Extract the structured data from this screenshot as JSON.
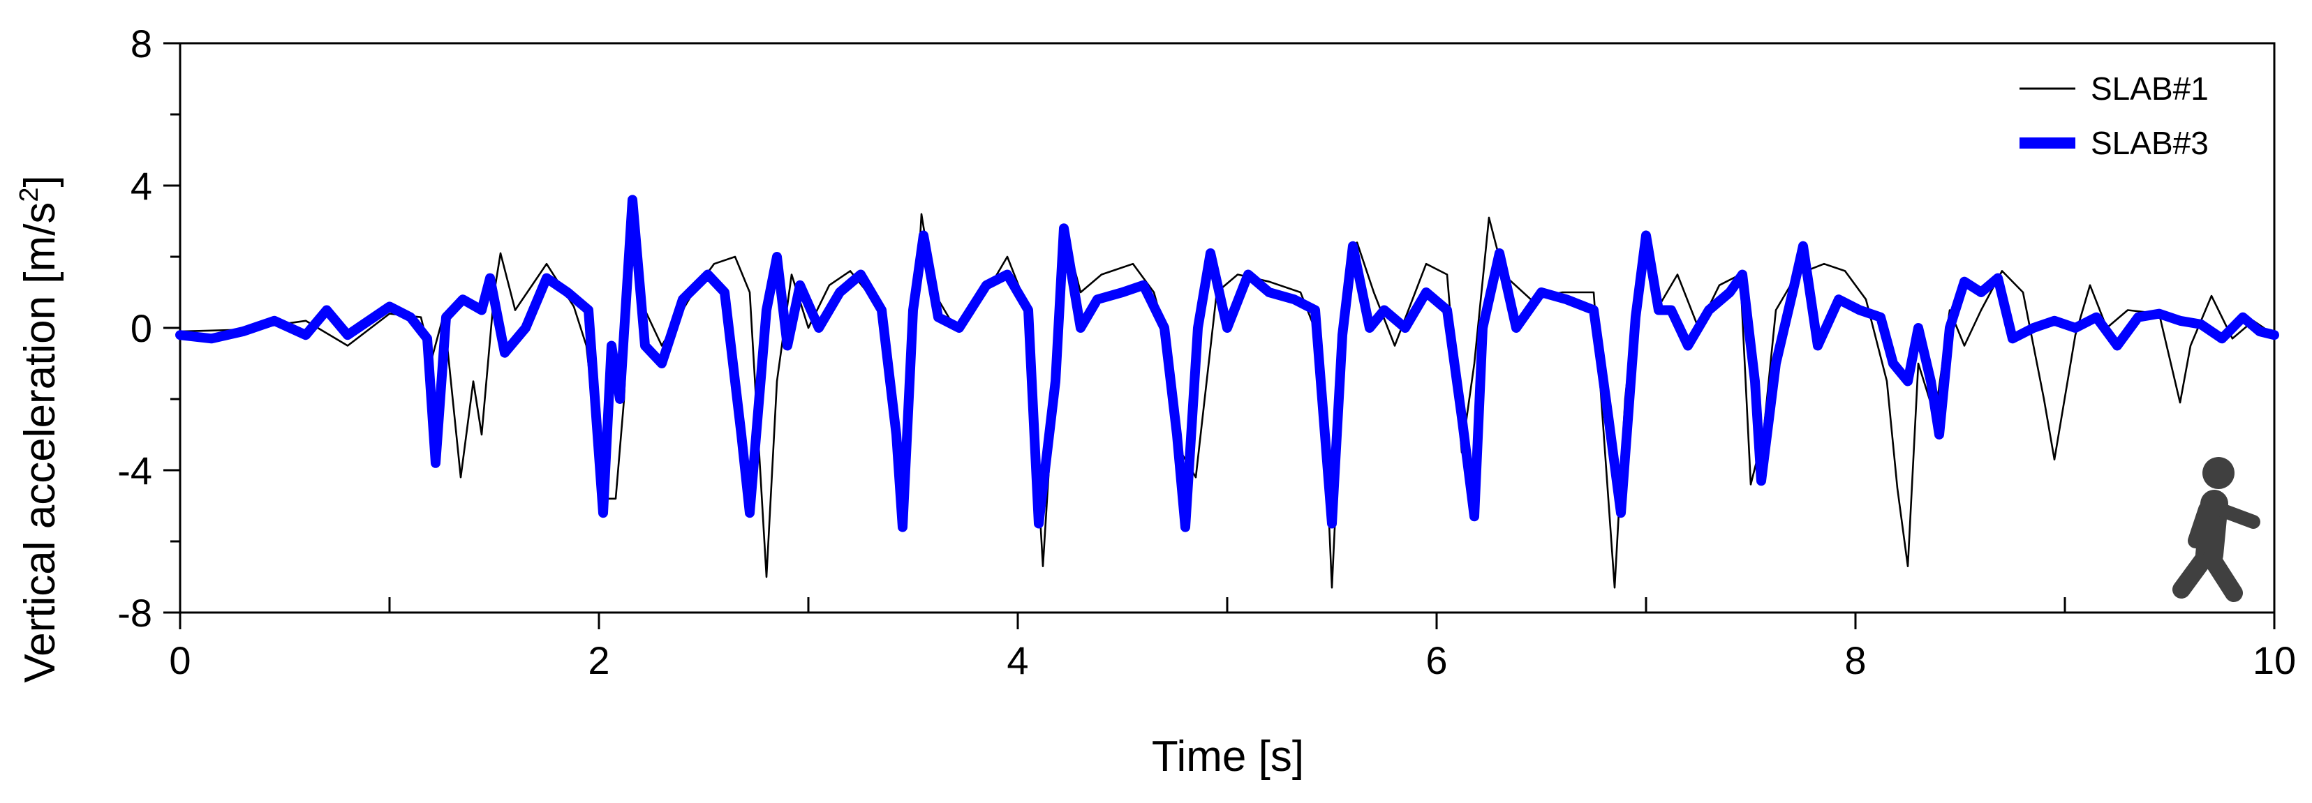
{
  "chart_data": {
    "type": "line",
    "title": "",
    "xlabel": "Time [s]",
    "ylabel_main": "Vertical acceleration  [m/s",
    "ylabel_sup": "2",
    "ylabel_end": "]",
    "xlim": [
      0,
      10
    ],
    "ylim": [
      -8,
      8
    ],
    "x_ticks": [
      0,
      2,
      4,
      6,
      8,
      10
    ],
    "x_tick_labels": [
      "0",
      "2",
      "4",
      "6",
      "8",
      "10"
    ],
    "x_minor_ticks": [
      1,
      3,
      5,
      7,
      9
    ],
    "y_ticks": [
      8,
      4,
      0,
      -4,
      -8
    ],
    "y_tick_labels": [
      "8",
      "4",
      "0",
      "-4",
      "-8"
    ],
    "y_minor_ticks": [
      6,
      2,
      -2,
      -6
    ],
    "grid": false,
    "legend_position": "top-right",
    "series": [
      {
        "name": "SLAB#1",
        "color": "#000000",
        "style": "thin",
        "points": [
          [
            0.0,
            -0.1
          ],
          [
            0.3,
            -0.05
          ],
          [
            0.6,
            0.2
          ],
          [
            0.8,
            -0.5
          ],
          [
            1.0,
            0.4
          ],
          [
            1.15,
            0.3
          ],
          [
            1.2,
            -0.9
          ],
          [
            1.26,
            0.4
          ],
          [
            1.34,
            -4.2
          ],
          [
            1.4,
            -1.5
          ],
          [
            1.44,
            -3.0
          ],
          [
            1.5,
            1.0
          ],
          [
            1.53,
            2.1
          ],
          [
            1.6,
            0.5
          ],
          [
            1.75,
            1.8
          ],
          [
            1.88,
            0.6
          ],
          [
            1.94,
            -0.5
          ],
          [
            2.02,
            -4.8
          ],
          [
            2.08,
            -4.8
          ],
          [
            2.12,
            -2.0
          ],
          [
            2.16,
            3.2
          ],
          [
            2.22,
            0.5
          ],
          [
            2.3,
            -0.5
          ],
          [
            2.45,
            1.0
          ],
          [
            2.55,
            1.8
          ],
          [
            2.65,
            2.0
          ],
          [
            2.72,
            1.0
          ],
          [
            2.76,
            -3.0
          ],
          [
            2.8,
            -7.0
          ],
          [
            2.85,
            -1.5
          ],
          [
            2.92,
            1.5
          ],
          [
            3.0,
            0.0
          ],
          [
            3.1,
            1.2
          ],
          [
            3.2,
            1.6
          ],
          [
            3.35,
            0.5
          ],
          [
            3.45,
            -4.8
          ],
          [
            3.5,
            -1.0
          ],
          [
            3.54,
            3.2
          ],
          [
            3.6,
            1.0
          ],
          [
            3.7,
            0.0
          ],
          [
            3.85,
            1.0
          ],
          [
            3.95,
            2.0
          ],
          [
            4.05,
            0.5
          ],
          [
            4.12,
            -6.7
          ],
          [
            4.18,
            -1.0
          ],
          [
            4.22,
            2.8
          ],
          [
            4.3,
            1.0
          ],
          [
            4.4,
            1.5
          ],
          [
            4.55,
            1.8
          ],
          [
            4.65,
            1.0
          ],
          [
            4.72,
            -0.5
          ],
          [
            4.78,
            -3.5
          ],
          [
            4.85,
            -4.2
          ],
          [
            4.95,
            1.0
          ],
          [
            5.05,
            1.5
          ],
          [
            5.2,
            1.3
          ],
          [
            5.35,
            1.0
          ],
          [
            5.45,
            -0.5
          ],
          [
            5.5,
            -7.3
          ],
          [
            5.55,
            -1.0
          ],
          [
            5.62,
            2.4
          ],
          [
            5.7,
            1.0
          ],
          [
            5.8,
            -0.5
          ],
          [
            5.95,
            1.8
          ],
          [
            6.05,
            1.5
          ],
          [
            6.12,
            -3.5
          ],
          [
            6.18,
            -1.0
          ],
          [
            6.25,
            3.1
          ],
          [
            6.32,
            1.5
          ],
          [
            6.45,
            0.8
          ],
          [
            6.6,
            1.0
          ],
          [
            6.75,
            1.0
          ],
          [
            6.85,
            -7.3
          ],
          [
            6.9,
            -2.0
          ],
          [
            6.98,
            2.5
          ],
          [
            7.05,
            0.5
          ],
          [
            7.15,
            1.5
          ],
          [
            7.25,
            0.0
          ],
          [
            7.35,
            1.2
          ],
          [
            7.45,
            1.5
          ],
          [
            7.5,
            -4.4
          ],
          [
            7.56,
            -3.0
          ],
          [
            7.62,
            0.5
          ],
          [
            7.72,
            1.5
          ],
          [
            7.85,
            1.8
          ],
          [
            7.95,
            1.6
          ],
          [
            8.05,
            0.8
          ],
          [
            8.15,
            -1.5
          ],
          [
            8.2,
            -4.5
          ],
          [
            8.25,
            -6.7
          ],
          [
            8.3,
            -1.0
          ],
          [
            8.38,
            -2.5
          ],
          [
            8.45,
            0.5
          ],
          [
            8.52,
            -0.5
          ],
          [
            8.6,
            0.5
          ],
          [
            8.7,
            1.6
          ],
          [
            8.8,
            1.0
          ],
          [
            8.9,
            -2.0
          ],
          [
            8.95,
            -3.7
          ],
          [
            9.05,
            -0.2
          ],
          [
            9.12,
            1.2
          ],
          [
            9.2,
            0.0
          ],
          [
            9.3,
            0.5
          ],
          [
            9.45,
            0.4
          ],
          [
            9.55,
            -2.1
          ],
          [
            9.6,
            -0.5
          ],
          [
            9.7,
            0.9
          ],
          [
            9.8,
            -0.3
          ],
          [
            9.9,
            0.2
          ],
          [
            10.0,
            -0.2
          ]
        ]
      },
      {
        "name": "SLAB#3",
        "color": "#0000ff",
        "style": "thick",
        "points": [
          [
            0.0,
            -0.2
          ],
          [
            0.15,
            -0.3
          ],
          [
            0.3,
            -0.1
          ],
          [
            0.45,
            0.2
          ],
          [
            0.6,
            -0.2
          ],
          [
            0.7,
            0.5
          ],
          [
            0.8,
            -0.2
          ],
          [
            0.9,
            0.2
          ],
          [
            1.0,
            0.6
          ],
          [
            1.1,
            0.3
          ],
          [
            1.18,
            -0.3
          ],
          [
            1.22,
            -3.8
          ],
          [
            1.27,
            0.3
          ],
          [
            1.35,
            0.8
          ],
          [
            1.44,
            0.5
          ],
          [
            1.48,
            1.4
          ],
          [
            1.55,
            -0.7
          ],
          [
            1.65,
            0.0
          ],
          [
            1.75,
            1.4
          ],
          [
            1.85,
            1.0
          ],
          [
            1.95,
            0.5
          ],
          [
            2.02,
            -5.2
          ],
          [
            2.06,
            -0.5
          ],
          [
            2.1,
            -2.0
          ],
          [
            2.16,
            3.6
          ],
          [
            2.22,
            -0.5
          ],
          [
            2.3,
            -1.0
          ],
          [
            2.4,
            0.8
          ],
          [
            2.52,
            1.5
          ],
          [
            2.6,
            1.0
          ],
          [
            2.68,
            -3.0
          ],
          [
            2.72,
            -5.2
          ],
          [
            2.8,
            0.5
          ],
          [
            2.85,
            2.0
          ],
          [
            2.9,
            -0.5
          ],
          [
            2.96,
            1.2
          ],
          [
            3.05,
            0.0
          ],
          [
            3.15,
            1.0
          ],
          [
            3.25,
            1.5
          ],
          [
            3.35,
            0.5
          ],
          [
            3.42,
            -3.0
          ],
          [
            3.45,
            -5.6
          ],
          [
            3.5,
            0.5
          ],
          [
            3.55,
            2.6
          ],
          [
            3.62,
            0.3
          ],
          [
            3.72,
            0.0
          ],
          [
            3.85,
            1.2
          ],
          [
            3.95,
            1.5
          ],
          [
            4.05,
            0.5
          ],
          [
            4.1,
            -5.5
          ],
          [
            4.18,
            -1.5
          ],
          [
            4.22,
            2.8
          ],
          [
            4.3,
            0.0
          ],
          [
            4.38,
            0.8
          ],
          [
            4.5,
            1.0
          ],
          [
            4.6,
            1.2
          ],
          [
            4.7,
            0.0
          ],
          [
            4.76,
            -3.0
          ],
          [
            4.8,
            -5.6
          ],
          [
            4.86,
            0.0
          ],
          [
            4.92,
            2.1
          ],
          [
            5.0,
            0.0
          ],
          [
            5.1,
            1.5
          ],
          [
            5.2,
            1.0
          ],
          [
            5.32,
            0.8
          ],
          [
            5.42,
            0.5
          ],
          [
            5.48,
            -4.0
          ],
          [
            5.5,
            -5.5
          ],
          [
            5.55,
            -0.2
          ],
          [
            5.6,
            2.3
          ],
          [
            5.68,
            0.0
          ],
          [
            5.75,
            0.5
          ],
          [
            5.85,
            0.0
          ],
          [
            5.95,
            1.0
          ],
          [
            6.05,
            0.5
          ],
          [
            6.12,
            -2.5
          ],
          [
            6.18,
            -5.3
          ],
          [
            6.22,
            0.0
          ],
          [
            6.3,
            2.1
          ],
          [
            6.38,
            0.0
          ],
          [
            6.5,
            1.0
          ],
          [
            6.62,
            0.8
          ],
          [
            6.75,
            0.5
          ],
          [
            6.82,
            -2.5
          ],
          [
            6.88,
            -5.2
          ],
          [
            6.95,
            0.3
          ],
          [
            7.0,
            2.6
          ],
          [
            7.06,
            0.5
          ],
          [
            7.12,
            0.5
          ],
          [
            7.2,
            -0.5
          ],
          [
            7.3,
            0.5
          ],
          [
            7.4,
            1.0
          ],
          [
            7.46,
            1.5
          ],
          [
            7.52,
            -1.5
          ],
          [
            7.55,
            -4.3
          ],
          [
            7.62,
            -1.0
          ],
          [
            7.7,
            1.0
          ],
          [
            7.75,
            2.3
          ],
          [
            7.82,
            -0.5
          ],
          [
            7.92,
            0.8
          ],
          [
            8.02,
            0.5
          ],
          [
            8.12,
            0.3
          ],
          [
            8.18,
            -1.0
          ],
          [
            8.25,
            -1.5
          ],
          [
            8.3,
            0.0
          ],
          [
            8.36,
            -1.5
          ],
          [
            8.4,
            -3.0
          ],
          [
            8.45,
            0.0
          ],
          [
            8.52,
            1.3
          ],
          [
            8.6,
            1.0
          ],
          [
            8.68,
            1.4
          ],
          [
            8.75,
            -0.3
          ],
          [
            8.85,
            0.0
          ],
          [
            8.95,
            0.2
          ],
          [
            9.05,
            0.0
          ],
          [
            9.15,
            0.3
          ],
          [
            9.25,
            -0.5
          ],
          [
            9.35,
            0.3
          ],
          [
            9.45,
            0.4
          ],
          [
            9.55,
            0.2
          ],
          [
            9.65,
            0.1
          ],
          [
            9.75,
            -0.3
          ],
          [
            9.85,
            0.3
          ],
          [
            9.93,
            -0.1
          ],
          [
            10.0,
            -0.2
          ]
        ]
      }
    ]
  },
  "walker_icon": {
    "icon": "walking-person-icon",
    "color": "#404040"
  }
}
